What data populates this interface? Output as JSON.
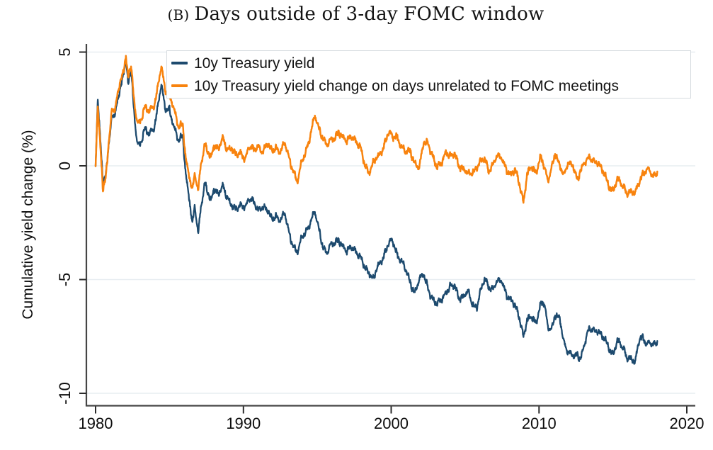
{
  "title": {
    "prefix": "(B)",
    "text": "Days outside of 3-day FOMC window"
  },
  "y_axis": {
    "label": "Cumulative yield change (%)",
    "ticks": [
      5,
      0,
      -5,
      -10
    ]
  },
  "x_axis": {
    "ticks": [
      1980,
      1990,
      2000,
      2010,
      2020
    ]
  },
  "legend": {
    "items": [
      {
        "label": "10y Treasury yield",
        "color": "#1d4a6e"
      },
      {
        "label": "10y Treasury yield change on days unrelated to FOMC meetings",
        "color": "#f8830e"
      }
    ]
  },
  "colors": {
    "navy": "#1d4a6e",
    "orange": "#f8830e",
    "gridline": "#e7edf1",
    "axis": "#454545",
    "tick": "#2b2b2b",
    "text": "#0d0d0d"
  },
  "chart_data": {
    "type": "line",
    "title": "(B) Days outside of 3-day FOMC window",
    "xlabel": "",
    "ylabel": "Cumulative yield change (%)",
    "xlim": [
      1979.4,
      2020.6
    ],
    "ylim": [
      -10.5,
      5.4
    ],
    "x_ticks": [
      1980,
      1990,
      2000,
      2010,
      2020
    ],
    "y_ticks": [
      5,
      0,
      -5,
      -10
    ],
    "grid": "horizontal",
    "legend_position": "top-inside",
    "series": [
      {
        "name": "10y Treasury yield",
        "color": "#1d4a6e",
        "points": [
          [
            1980.0,
            0.1
          ],
          [
            1980.15,
            2.8
          ],
          [
            1980.3,
            1.4
          ],
          [
            1980.5,
            -1.0
          ],
          [
            1980.7,
            -0.2
          ],
          [
            1980.9,
            1.0
          ],
          [
            1981.1,
            2.3
          ],
          [
            1981.3,
            2.0
          ],
          [
            1981.5,
            2.9
          ],
          [
            1981.7,
            3.4
          ],
          [
            1981.9,
            4.3
          ],
          [
            1982.05,
            4.75
          ],
          [
            1982.2,
            3.6
          ],
          [
            1982.4,
            4.1
          ],
          [
            1982.6,
            2.3
          ],
          [
            1982.8,
            1.1
          ],
          [
            1983.0,
            1.0
          ],
          [
            1983.3,
            1.55
          ],
          [
            1983.6,
            1.3
          ],
          [
            1983.9,
            1.7
          ],
          [
            1984.1,
            2.2
          ],
          [
            1984.45,
            3.5
          ],
          [
            1984.7,
            2.5
          ],
          [
            1985.0,
            2.6
          ],
          [
            1985.3,
            1.7
          ],
          [
            1985.6,
            1.0
          ],
          [
            1985.9,
            1.4
          ],
          [
            1986.1,
            -0.3
          ],
          [
            1986.35,
            -1.5
          ],
          [
            1986.55,
            -2.7
          ],
          [
            1986.7,
            -1.8
          ],
          [
            1986.95,
            -2.9
          ],
          [
            1987.1,
            -1.8
          ],
          [
            1987.4,
            -0.8
          ],
          [
            1987.6,
            -1.3
          ],
          [
            1987.8,
            -1.6
          ],
          [
            1988.0,
            -0.9
          ],
          [
            1988.3,
            -1.2
          ],
          [
            1988.6,
            -1.0
          ],
          [
            1988.9,
            -1.4
          ],
          [
            1989.2,
            -1.6
          ],
          [
            1989.5,
            -2.0
          ],
          [
            1989.8,
            -1.8
          ],
          [
            1990.1,
            -1.7
          ],
          [
            1990.4,
            -1.4
          ],
          [
            1990.7,
            -1.7
          ],
          [
            1991.0,
            -1.9
          ],
          [
            1991.3,
            -1.7
          ],
          [
            1991.6,
            -2.0
          ],
          [
            1991.9,
            -2.4
          ],
          [
            1992.2,
            -2.1
          ],
          [
            1992.5,
            -2.4
          ],
          [
            1992.8,
            -2.2
          ],
          [
            1993.1,
            -2.9
          ],
          [
            1993.4,
            -3.5
          ],
          [
            1993.65,
            -3.9
          ],
          [
            1993.9,
            -3.3
          ],
          [
            1994.2,
            -2.8
          ],
          [
            1994.5,
            -2.5
          ],
          [
            1994.85,
            -2.15
          ],
          [
            1995.1,
            -2.7
          ],
          [
            1995.4,
            -3.5
          ],
          [
            1995.65,
            -3.85
          ],
          [
            1995.9,
            -3.6
          ],
          [
            1996.2,
            -3.3
          ],
          [
            1996.45,
            -3.15
          ],
          [
            1996.7,
            -3.6
          ],
          [
            1997.0,
            -3.85
          ],
          [
            1997.3,
            -3.45
          ],
          [
            1997.6,
            -3.75
          ],
          [
            1997.9,
            -4.15
          ],
          [
            1998.2,
            -4.4
          ],
          [
            1998.5,
            -4.6
          ],
          [
            1998.8,
            -5.05
          ],
          [
            1999.1,
            -4.5
          ],
          [
            1999.4,
            -4.0
          ],
          [
            1999.8,
            -3.5
          ],
          [
            2000.1,
            -3.35
          ],
          [
            2000.4,
            -3.8
          ],
          [
            2000.7,
            -4.2
          ],
          [
            2001.0,
            -4.7
          ],
          [
            2001.3,
            -5.1
          ],
          [
            2001.6,
            -5.5
          ],
          [
            2001.9,
            -5.1
          ],
          [
            2002.2,
            -4.8
          ],
          [
            2002.5,
            -5.3
          ],
          [
            2002.8,
            -5.9
          ],
          [
            2003.1,
            -6.2
          ],
          [
            2003.4,
            -5.8
          ],
          [
            2003.7,
            -5.5
          ],
          [
            2004.0,
            -5.4
          ],
          [
            2004.3,
            -5.3
          ],
          [
            2004.6,
            -5.7
          ],
          [
            2004.9,
            -5.8
          ],
          [
            2005.2,
            -5.6
          ],
          [
            2005.5,
            -6.0
          ],
          [
            2005.8,
            -6.15
          ],
          [
            2006.1,
            -5.5
          ],
          [
            2006.35,
            -4.95
          ],
          [
            2006.6,
            -5.2
          ],
          [
            2006.9,
            -5.4
          ],
          [
            2007.2,
            -5.2
          ],
          [
            2007.5,
            -5.0
          ],
          [
            2007.8,
            -5.6
          ],
          [
            2008.1,
            -6.0
          ],
          [
            2008.4,
            -6.2
          ],
          [
            2008.65,
            -6.5
          ],
          [
            2008.95,
            -7.5
          ],
          [
            2009.2,
            -6.9
          ],
          [
            2009.5,
            -6.6
          ],
          [
            2009.8,
            -6.8
          ],
          [
            2010.1,
            -6.2
          ],
          [
            2010.35,
            -6.1
          ],
          [
            2010.6,
            -7.0
          ],
          [
            2010.85,
            -7.1
          ],
          [
            2011.1,
            -6.6
          ],
          [
            2011.4,
            -6.8
          ],
          [
            2011.7,
            -7.7
          ],
          [
            2011.95,
            -8.1
          ],
          [
            2012.3,
            -8.45
          ],
          [
            2012.6,
            -8.3
          ],
          [
            2012.8,
            -8.35
          ],
          [
            2013.0,
            -8.0
          ],
          [
            2013.3,
            -7.4
          ],
          [
            2013.6,
            -7.15
          ],
          [
            2014.0,
            -7.2
          ],
          [
            2014.3,
            -7.6
          ],
          [
            2014.7,
            -7.9
          ],
          [
            2015.0,
            -8.2
          ],
          [
            2015.3,
            -7.8
          ],
          [
            2015.7,
            -8.0
          ],
          [
            2016.0,
            -8.35
          ],
          [
            2016.5,
            -8.75
          ],
          [
            2016.8,
            -7.5
          ],
          [
            2017.0,
            -7.45
          ],
          [
            2017.3,
            -7.9
          ],
          [
            2017.7,
            -7.85
          ],
          [
            2018.0,
            -7.7
          ]
        ]
      },
      {
        "name": "10y Treasury yield change on days unrelated to FOMC meetings",
        "color": "#f8830e",
        "points": [
          [
            1980.0,
            0.1
          ],
          [
            1980.15,
            2.5
          ],
          [
            1980.3,
            1.1
          ],
          [
            1980.5,
            -1.3
          ],
          [
            1980.7,
            -0.3
          ],
          [
            1980.9,
            1.1
          ],
          [
            1981.1,
            2.6
          ],
          [
            1981.3,
            2.2
          ],
          [
            1981.5,
            3.2
          ],
          [
            1981.7,
            3.7
          ],
          [
            1981.9,
            4.4
          ],
          [
            1982.05,
            4.85
          ],
          [
            1982.2,
            3.9
          ],
          [
            1982.4,
            4.3
          ],
          [
            1982.6,
            2.8
          ],
          [
            1982.8,
            2.0
          ],
          [
            1983.0,
            2.0
          ],
          [
            1983.3,
            2.5
          ],
          [
            1983.6,
            2.3
          ],
          [
            1983.9,
            2.7
          ],
          [
            1984.1,
            3.1
          ],
          [
            1984.45,
            4.3
          ],
          [
            1984.7,
            3.3
          ],
          [
            1985.0,
            3.3
          ],
          [
            1985.3,
            2.5
          ],
          [
            1985.6,
            1.6
          ],
          [
            1985.9,
            1.9
          ],
          [
            1986.1,
            0.4
          ],
          [
            1986.35,
            -0.5
          ],
          [
            1986.55,
            -1.2
          ],
          [
            1986.7,
            -0.4
          ],
          [
            1986.95,
            -1.0
          ],
          [
            1987.1,
            0.1
          ],
          [
            1987.4,
            0.9
          ],
          [
            1987.6,
            0.5
          ],
          [
            1987.8,
            0.3
          ],
          [
            1988.0,
            1.0
          ],
          [
            1988.3,
            0.8
          ],
          [
            1988.6,
            1.1
          ],
          [
            1988.9,
            0.7
          ],
          [
            1989.2,
            0.9
          ],
          [
            1989.5,
            0.4
          ],
          [
            1989.8,
            0.5
          ],
          [
            1990.1,
            0.4
          ],
          [
            1990.4,
            0.9
          ],
          [
            1990.7,
            0.6
          ],
          [
            1991.0,
            0.9
          ],
          [
            1991.3,
            0.7
          ],
          [
            1991.6,
            0.9
          ],
          [
            1991.9,
            0.6
          ],
          [
            1992.2,
            0.9
          ],
          [
            1992.5,
            0.6
          ],
          [
            1992.8,
            0.9
          ],
          [
            1993.1,
            0.4
          ],
          [
            1993.4,
            -0.2
          ],
          [
            1993.65,
            -0.8
          ],
          [
            1993.9,
            0.0
          ],
          [
            1994.2,
            0.7
          ],
          [
            1994.5,
            1.3
          ],
          [
            1994.85,
            2.1
          ],
          [
            1995.1,
            1.7
          ],
          [
            1995.4,
            1.3
          ],
          [
            1995.65,
            0.9
          ],
          [
            1995.9,
            1.0
          ],
          [
            1996.2,
            1.3
          ],
          [
            1996.45,
            1.6
          ],
          [
            1996.7,
            1.2
          ],
          [
            1997.0,
            1.0
          ],
          [
            1997.3,
            1.4
          ],
          [
            1997.6,
            1.1
          ],
          [
            1997.9,
            0.7
          ],
          [
            1998.2,
            0.1
          ],
          [
            1998.5,
            -0.2
          ],
          [
            1998.8,
            0.1
          ],
          [
            1999.1,
            0.3
          ],
          [
            1999.4,
            0.8
          ],
          [
            1999.8,
            1.4
          ],
          [
            2000.1,
            1.2
          ],
          [
            2000.4,
            1.4
          ],
          [
            2000.7,
            0.8
          ],
          [
            2001.0,
            0.5
          ],
          [
            2001.3,
            0.7
          ],
          [
            2001.6,
            0.2
          ],
          [
            2001.9,
            -0.2
          ],
          [
            2002.2,
            1.0
          ],
          [
            2002.5,
            1.1
          ],
          [
            2002.8,
            0.4
          ],
          [
            2003.1,
            -0.2
          ],
          [
            2003.4,
            0.2
          ],
          [
            2003.7,
            0.7
          ],
          [
            2004.0,
            0.3
          ],
          [
            2004.3,
            0.5
          ],
          [
            2004.6,
            0.1
          ],
          [
            2004.9,
            -0.2
          ],
          [
            2005.2,
            -0.45
          ],
          [
            2005.5,
            -0.2
          ],
          [
            2005.8,
            0.0
          ],
          [
            2006.1,
            0.1
          ],
          [
            2006.35,
            0.3
          ],
          [
            2006.6,
            -0.1
          ],
          [
            2006.9,
            0.1
          ],
          [
            2007.2,
            0.3
          ],
          [
            2007.5,
            0.4
          ],
          [
            2007.8,
            -0.1
          ],
          [
            2008.1,
            -0.5
          ],
          [
            2008.4,
            -0.2
          ],
          [
            2008.65,
            -0.6
          ],
          [
            2008.95,
            -1.6
          ],
          [
            2009.2,
            -0.5
          ],
          [
            2009.5,
            0.0
          ],
          [
            2009.8,
            -0.2
          ],
          [
            2010.1,
            0.3
          ],
          [
            2010.35,
            -0.1
          ],
          [
            2010.6,
            -0.6
          ],
          [
            2010.85,
            0.0
          ],
          [
            2011.1,
            0.5
          ],
          [
            2011.4,
            -0.1
          ],
          [
            2011.7,
            -0.3
          ],
          [
            2011.95,
            0.2
          ],
          [
            2012.3,
            -0.1
          ],
          [
            2012.6,
            -0.6
          ],
          [
            2012.8,
            -0.1
          ],
          [
            2013.0,
            0.1
          ],
          [
            2013.3,
            0.2
          ],
          [
            2013.6,
            0.3
          ],
          [
            2014.0,
            0.2
          ],
          [
            2014.3,
            -0.3
          ],
          [
            2014.7,
            -0.8
          ],
          [
            2015.0,
            -1.0
          ],
          [
            2015.3,
            -0.7
          ],
          [
            2015.7,
            -0.9
          ],
          [
            2016.0,
            -1.1
          ],
          [
            2016.5,
            -1.3
          ],
          [
            2016.8,
            -0.6
          ],
          [
            2017.0,
            -0.3
          ],
          [
            2017.3,
            -0.2
          ],
          [
            2017.7,
            -0.45
          ],
          [
            2018.0,
            -0.25
          ]
        ]
      }
    ]
  }
}
